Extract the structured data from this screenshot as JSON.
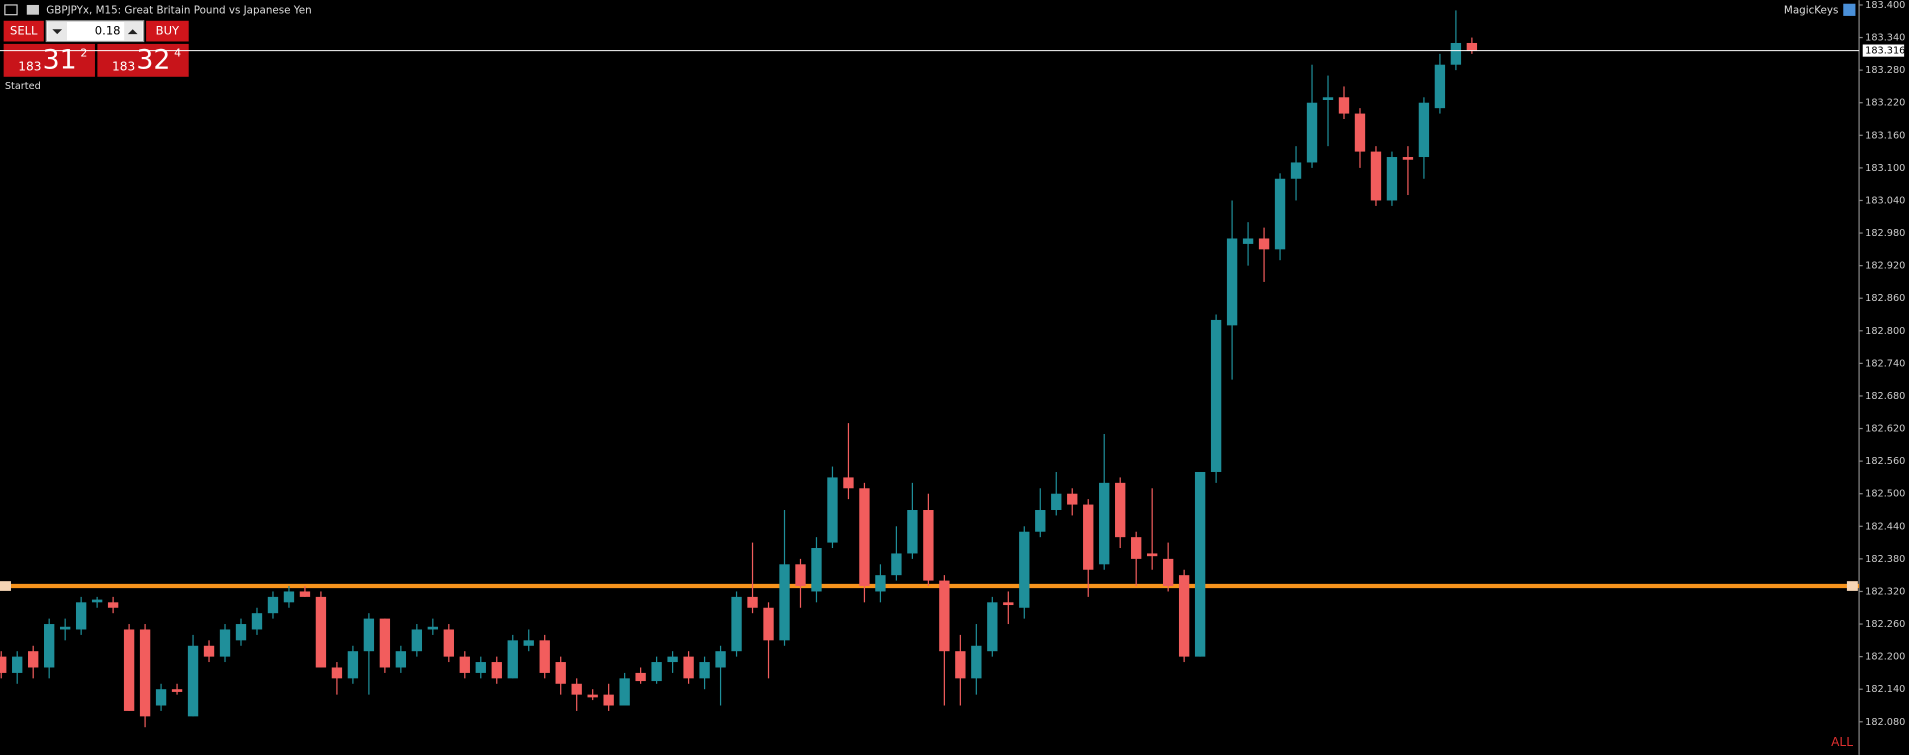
{
  "header": {
    "title": "GBPJPYx, M15:  Great Britain Pound vs Japanese Yen",
    "right_label": "MagicKeys"
  },
  "trade_panel": {
    "sell_label": "SELL",
    "buy_label": "BUY",
    "volume": "0.18",
    "bid": {
      "big": "183",
      "main": "31",
      "small": "2"
    },
    "ask": {
      "big": "183",
      "main": "32",
      "small": "4"
    },
    "status": "Started"
  },
  "footer_label": "ALL",
  "chart_data": {
    "type": "candlestick",
    "up_color": "#1f8f9a",
    "down_color": "#f25d5d",
    "ylim": [
      182.019,
      183.409
    ],
    "yticks": [
      {
        "value": 183.4,
        "label": "183.400"
      },
      {
        "value": 183.34,
        "label": "183.340"
      },
      {
        "value": 183.28,
        "label": "183.280"
      },
      {
        "value": 183.22,
        "label": "183.220"
      },
      {
        "value": 183.16,
        "label": "183.160"
      },
      {
        "value": 183.1,
        "label": "183.100"
      },
      {
        "value": 183.04,
        "label": "183.040"
      },
      {
        "value": 182.98,
        "label": "182.980"
      },
      {
        "value": 182.92,
        "label": "182.920"
      },
      {
        "value": 182.86,
        "label": "182.860"
      },
      {
        "value": 182.8,
        "label": "182.800"
      },
      {
        "value": 182.74,
        "label": "182.740"
      },
      {
        "value": 182.68,
        "label": "182.680"
      },
      {
        "value": 182.62,
        "label": "182.620"
      },
      {
        "value": 182.56,
        "label": "182.560"
      },
      {
        "value": 182.5,
        "label": "182.500"
      },
      {
        "value": 182.44,
        "label": "182.440"
      },
      {
        "value": 182.38,
        "label": "182.380"
      },
      {
        "value": 182.32,
        "label": "182.320"
      },
      {
        "value": 182.26,
        "label": "182.260"
      },
      {
        "value": 182.2,
        "label": "182.200"
      },
      {
        "value": 182.14,
        "label": "182.140"
      },
      {
        "value": 182.08,
        "label": "182.080"
      }
    ],
    "current_price": {
      "value": 183.316,
      "label": "183.316",
      "color": "#ffffff"
    },
    "level_line": {
      "value": 182.33,
      "color": "#f7941d"
    },
    "open": [
      182.2,
      182.17,
      182.21,
      182.18,
      182.25,
      182.25,
      182.3,
      182.3,
      182.25,
      182.25,
      182.11,
      182.14,
      182.09,
      182.22,
      182.2,
      182.23,
      182.25,
      182.28,
      182.3,
      182.32,
      182.31,
      182.18,
      182.16,
      182.21,
      182.27,
      182.18,
      182.21,
      182.25,
      182.25,
      182.2,
      182.17,
      182.19,
      182.16,
      182.22,
      182.23,
      182.19,
      182.15,
      182.13,
      182.13,
      182.11,
      182.17,
      182.155,
      182.19,
      182.2,
      182.16,
      182.18,
      182.21,
      182.31,
      182.29,
      182.23,
      182.37,
      182.32,
      182.41,
      182.53,
      182.51,
      182.32,
      182.35,
      182.39,
      182.47,
      182.34,
      182.21,
      182.16,
      182.21,
      182.3,
      182.29,
      182.43,
      182.47,
      182.5,
      182.48,
      182.37,
      182.52,
      182.42,
      182.39,
      182.38,
      182.35,
      182.2,
      182.54,
      182.81,
      182.96,
      182.97,
      182.95,
      183.08,
      183.11,
      183.225,
      183.23,
      183.2,
      183.13,
      183.04,
      183.12,
      183.12,
      183.21,
      183.29,
      183.33
    ],
    "high": [
      182.21,
      182.21,
      182.22,
      182.27,
      182.27,
      182.31,
      182.31,
      182.31,
      182.26,
      182.26,
      182.15,
      182.15,
      182.24,
      182.23,
      182.26,
      182.27,
      182.29,
      182.32,
      182.33,
      182.33,
      182.32,
      182.19,
      182.22,
      182.28,
      182.27,
      182.22,
      182.26,
      182.27,
      182.26,
      182.21,
      182.2,
      182.2,
      182.24,
      182.25,
      182.24,
      182.2,
      182.16,
      182.14,
      182.15,
      182.17,
      182.18,
      182.2,
      182.21,
      182.21,
      182.2,
      182.22,
      182.32,
      182.41,
      182.3,
      182.47,
      182.38,
      182.42,
      182.55,
      182.63,
      182.52,
      182.37,
      182.44,
      182.52,
      182.5,
      182.35,
      182.24,
      182.26,
      182.31,
      182.32,
      182.44,
      182.51,
      182.54,
      182.51,
      182.49,
      182.61,
      182.53,
      182.43,
      182.51,
      182.41,
      182.36,
      182.54,
      182.83,
      183.04,
      183.0,
      182.99,
      183.09,
      183.14,
      183.29,
      183.27,
      183.25,
      183.21,
      183.14,
      183.13,
      183.14,
      183.23,
      183.31,
      183.39,
      183.34
    ],
    "low": [
      182.16,
      182.15,
      182.16,
      182.16,
      182.23,
      182.24,
      182.29,
      182.28,
      182.1,
      182.07,
      182.1,
      182.13,
      182.09,
      182.19,
      182.19,
      182.22,
      182.24,
      182.27,
      182.29,
      182.31,
      182.18,
      182.13,
      182.15,
      182.13,
      182.17,
      182.17,
      182.2,
      182.24,
      182.19,
      182.16,
      182.16,
      182.15,
      182.16,
      182.21,
      182.16,
      182.13,
      182.1,
      182.12,
      182.1,
      182.11,
      182.15,
      182.15,
      182.17,
      182.15,
      182.14,
      182.11,
      182.2,
      182.28,
      182.16,
      182.22,
      182.29,
      182.3,
      182.4,
      182.49,
      182.3,
      182.3,
      182.34,
      182.38,
      182.33,
      182.11,
      182.11,
      182.13,
      182.2,
      182.26,
      182.27,
      182.42,
      182.46,
      182.46,
      182.31,
      182.36,
      182.4,
      182.33,
      182.36,
      182.32,
      182.19,
      182.2,
      182.52,
      182.71,
      182.92,
      182.89,
      182.93,
      183.04,
      183.1,
      183.14,
      183.19,
      183.1,
      183.03,
      183.03,
      183.05,
      183.08,
      183.2,
      183.28,
      183.31
    ],
    "close": [
      182.17,
      182.2,
      182.18,
      182.26,
      182.255,
      182.3,
      182.305,
      182.29,
      182.1,
      182.09,
      182.14,
      182.135,
      182.22,
      182.2,
      182.25,
      182.26,
      182.28,
      182.31,
      182.32,
      182.31,
      182.18,
      182.16,
      182.21,
      182.27,
      182.18,
      182.21,
      182.25,
      182.255,
      182.2,
      182.17,
      182.19,
      182.16,
      182.23,
      182.23,
      182.17,
      182.15,
      182.13,
      182.125,
      182.11,
      182.16,
      182.155,
      182.19,
      182.2,
      182.16,
      182.19,
      182.21,
      182.31,
      182.29,
      182.23,
      182.37,
      182.33,
      182.4,
      182.53,
      182.51,
      182.33,
      182.35,
      182.39,
      182.47,
      182.34,
      182.21,
      182.16,
      182.22,
      182.3,
      182.295,
      182.43,
      182.47,
      182.5,
      182.48,
      182.36,
      182.52,
      182.42,
      182.38,
      182.385,
      182.33,
      182.2,
      182.54,
      182.82,
      182.97,
      182.97,
      182.95,
      183.08,
      183.11,
      183.22,
      183.23,
      183.2,
      183.13,
      183.04,
      183.12,
      183.115,
      183.22,
      183.29,
      183.33,
      183.316
    ]
  }
}
